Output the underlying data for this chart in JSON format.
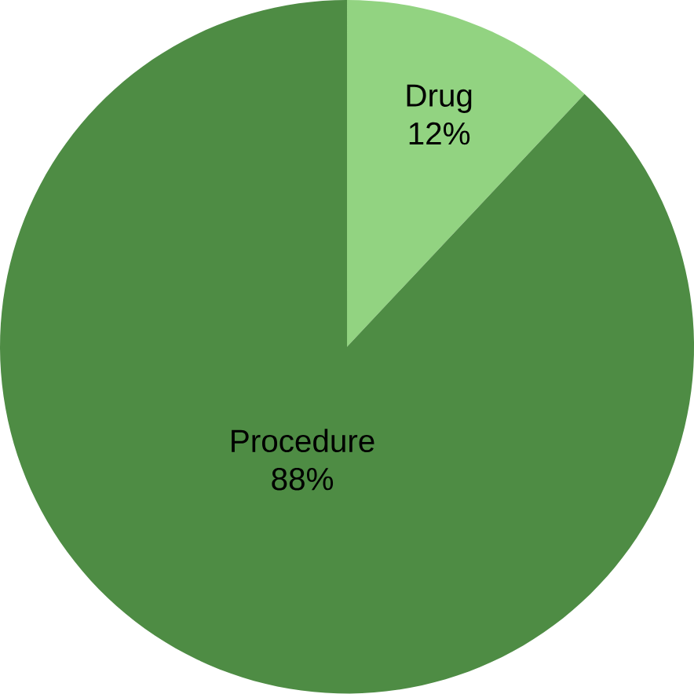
{
  "chart_data": {
    "type": "pie",
    "categories": [
      "Drug",
      "Procedure"
    ],
    "values": [
      12,
      88
    ],
    "value_labels": [
      "12%",
      "88%"
    ],
    "colors": [
      "#92d381",
      "#4e8c44"
    ]
  }
}
